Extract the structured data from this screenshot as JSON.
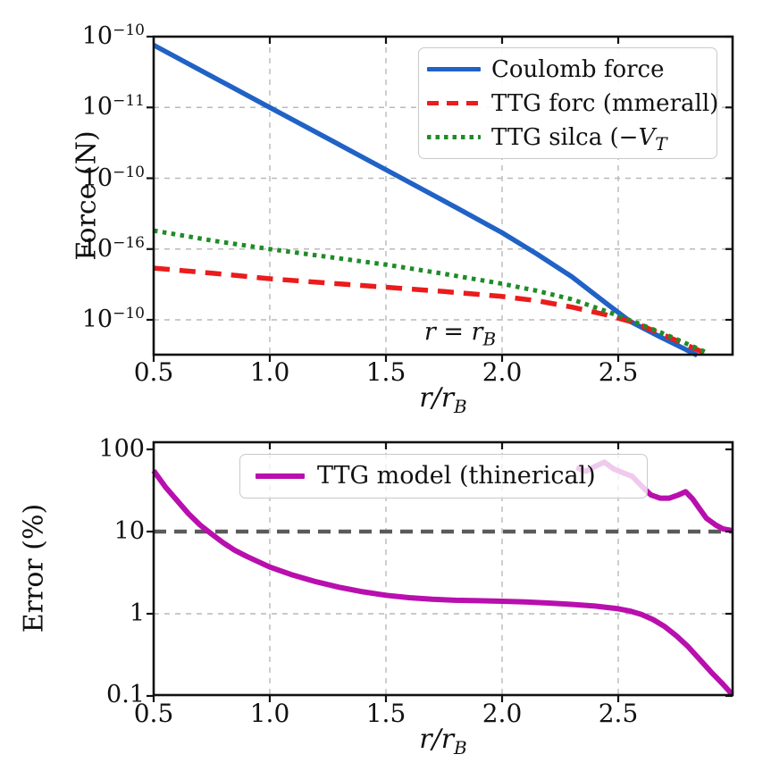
{
  "colors": {
    "coulomb_blue": "#2062c6",
    "ttg_red": "#ea1c1c",
    "ttg_green": "#1e8c28",
    "error_magenta": "#b80fae",
    "threshold_gray": "#5a5a5a",
    "grid_gray": "#b9b9b9",
    "spine_black": "#111111",
    "legend_border": "#c9c9c9"
  },
  "top_plot": {
    "ylabel": "Force (N)",
    "xlabel": {
      "text": "r/r",
      "sub": "B"
    },
    "x_tick_labels": [
      "0.5",
      "1.0",
      "1.5",
      "2.0",
      "2.5"
    ],
    "y_tick_display": [
      {
        "base": "10",
        "exp": "−10"
      },
      {
        "base": "10",
        "exp": "−11"
      },
      {
        "base": "10",
        "exp": "−10"
      },
      {
        "base": "10",
        "exp": "−16"
      },
      {
        "base": "10",
        "exp": "−10"
      }
    ],
    "legend_rows": [
      {
        "text": "Coulomb force"
      },
      {
        "text": "TTG forc (mmerall)"
      },
      {
        "text": "TTG silca (−",
        "var": "V",
        "sub": "T"
      }
    ],
    "annotation": {
      "text": "r = r",
      "sub": "B"
    }
  },
  "bottom_plot": {
    "ylabel": "Error (%)",
    "xlabel": {
      "text": "r/r",
      "sub": "B"
    },
    "x_tick_labels": [
      "0.5",
      "1.0",
      "1.5",
      "2.0",
      "2.5"
    ],
    "y_tick_labels": [
      "100",
      "10",
      "1",
      "0.1"
    ],
    "legend_rows": [
      {
        "text": "TTG model (thinerical)"
      }
    ]
  },
  "chart_data": [
    {
      "type": "line",
      "title": "",
      "xlabel": "r/r_B",
      "ylabel": "Force (N)",
      "x_ticks": [
        0.5,
        1.0,
        1.5,
        2.0,
        2.5
      ],
      "x_range": [
        0.5,
        2.99
      ],
      "y_scale": "log",
      "y_tick_labels_as_printed": [
        "10^-10",
        "10^-11",
        "10^-10",
        "10^-16",
        "10^-10"
      ],
      "y_unit": "gridline_level (5 = top labeled gridline, 1 = bottom labeled gridline, one decade per level)",
      "grid": true,
      "legend_position": "upper right",
      "annotation": "r = r_B",
      "series": [
        {
          "name": "Coulomb force",
          "style": "solid",
          "color": "#2062c6",
          "points": [
            [
              0.5,
              4.88
            ],
            [
              0.75,
              4.44
            ],
            [
              1.0,
              4.0
            ],
            [
              1.25,
              3.56
            ],
            [
              1.5,
              3.12
            ],
            [
              1.75,
              2.68
            ],
            [
              2.0,
              2.23
            ],
            [
              2.15,
              1.93
            ],
            [
              2.3,
              1.61
            ],
            [
              2.45,
              1.23
            ],
            [
              2.55,
              0.98
            ],
            [
              2.68,
              0.76
            ],
            [
              2.84,
              0.5
            ]
          ]
        },
        {
          "name": "TTG forc (mmerall)",
          "style": "dashed",
          "color": "#ea1c1c",
          "points": [
            [
              0.5,
              1.73
            ],
            [
              0.75,
              1.66
            ],
            [
              1.0,
              1.58
            ],
            [
              1.25,
              1.52
            ],
            [
              1.5,
              1.46
            ],
            [
              1.75,
              1.4
            ],
            [
              2.0,
              1.33
            ],
            [
              2.15,
              1.27
            ],
            [
              2.3,
              1.18
            ],
            [
              2.45,
              1.07
            ],
            [
              2.57,
              0.96
            ],
            [
              2.7,
              0.78
            ],
            [
              2.88,
              0.52
            ]
          ]
        },
        {
          "name": "TTG silca (−V_T",
          "style": "dotted",
          "color": "#1e8c28",
          "points": [
            [
              0.5,
              2.26
            ],
            [
              0.75,
              2.12
            ],
            [
              1.0,
              2.0
            ],
            [
              1.25,
              1.89
            ],
            [
              1.5,
              1.78
            ],
            [
              1.75,
              1.65
            ],
            [
              2.0,
              1.51
            ],
            [
              2.15,
              1.41
            ],
            [
              2.3,
              1.29
            ],
            [
              2.45,
              1.12
            ],
            [
              2.57,
              0.97
            ],
            [
              2.7,
              0.8
            ],
            [
              2.88,
              0.54
            ]
          ]
        }
      ]
    },
    {
      "type": "line",
      "title": "",
      "xlabel": "r/r_B",
      "ylabel": "Error (%)",
      "x_ticks": [
        0.5,
        1.0,
        1.5,
        2.0,
        2.5
      ],
      "x_range": [
        0.5,
        2.99
      ],
      "y_scale": "log",
      "y_ticks": [
        100,
        10,
        1,
        0.1
      ],
      "ylim": [
        0.1,
        120
      ],
      "grid": true,
      "legend_position": "upper center",
      "reference_line": {
        "y": 10,
        "style": "dashed",
        "color": "#5a5a5a"
      },
      "series": [
        {
          "name": "TTG model (thinerical)",
          "style": "solid",
          "color": "#b80fae",
          "points": [
            [
              0.5,
              55
            ],
            [
              0.55,
              35
            ],
            [
              0.6,
              24
            ],
            [
              0.65,
              16.5
            ],
            [
              0.7,
              12
            ],
            [
              0.75,
              9.3
            ],
            [
              0.8,
              7.3
            ],
            [
              0.85,
              5.9
            ],
            [
              0.9,
              5.0
            ],
            [
              0.95,
              4.3
            ],
            [
              1.0,
              3.7
            ],
            [
              1.1,
              2.95
            ],
            [
              1.2,
              2.45
            ],
            [
              1.3,
              2.1
            ],
            [
              1.4,
              1.85
            ],
            [
              1.5,
              1.68
            ],
            [
              1.6,
              1.57
            ],
            [
              1.7,
              1.5
            ],
            [
              1.8,
              1.46
            ],
            [
              1.9,
              1.44
            ],
            [
              2.0,
              1.42
            ],
            [
              2.1,
              1.39
            ],
            [
              2.2,
              1.35
            ],
            [
              2.3,
              1.3
            ],
            [
              2.4,
              1.24
            ],
            [
              2.5,
              1.15
            ],
            [
              2.55,
              1.08
            ],
            [
              2.6,
              0.98
            ],
            [
              2.65,
              0.85
            ],
            [
              2.7,
              0.7
            ],
            [
              2.75,
              0.54
            ],
            [
              2.8,
              0.4
            ],
            [
              2.85,
              0.28
            ],
            [
              2.9,
              0.195
            ],
            [
              2.95,
              0.14
            ],
            [
              2.99,
              0.105
            ]
          ]
        },
        {
          "name": "upper branch (unlabeled, passes behind legend)",
          "style": "solid",
          "color": "#b80fae",
          "points": [
            [
              2.32,
              60
            ],
            [
              2.36,
              54
            ],
            [
              2.4,
              62
            ],
            [
              2.44,
              70
            ],
            [
              2.48,
              58
            ],
            [
              2.52,
              52
            ],
            [
              2.56,
              47
            ],
            [
              2.6,
              36
            ],
            [
              2.64,
              28
            ],
            [
              2.68,
              25.5
            ],
            [
              2.72,
              25.5
            ],
            [
              2.76,
              28
            ],
            [
              2.79,
              30.5
            ],
            [
              2.82,
              25
            ],
            [
              2.85,
              19
            ],
            [
              2.88,
              14.5
            ],
            [
              2.92,
              12
            ],
            [
              2.95,
              10.8
            ],
            [
              2.99,
              10.3
            ]
          ]
        }
      ]
    }
  ]
}
